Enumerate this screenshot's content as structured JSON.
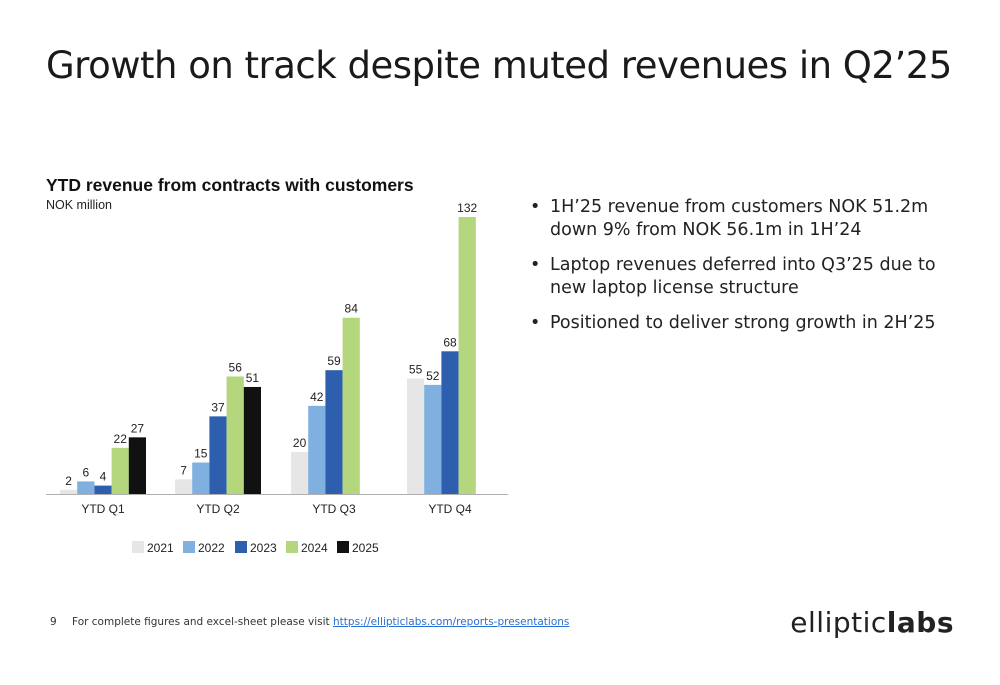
{
  "slide": {
    "title": "Growth on track despite muted revenues in Q2’25"
  },
  "bullets": [
    "1H’25 revenue from customers NOK 51.2m down 9% from NOK 56.1m in 1H’24",
    "Laptop revenues deferred into Q3’25 due to new laptop license structure",
    "Positioned to deliver strong growth in 2H’25"
  ],
  "footer": {
    "page_number": "9",
    "text": "For complete figures and excel-sheet please visit",
    "link": "https://ellipticlabs.com/reports-presentations"
  },
  "logo": {
    "part1": "elliptic",
    "part2": "labs"
  },
  "chart_data": {
    "type": "bar",
    "title": "YTD revenue from contracts with customers",
    "ylabel": "NOK million",
    "xlabel": "",
    "categories": [
      "YTD Q1",
      "YTD Q2",
      "YTD Q3",
      "YTD Q4"
    ],
    "ylim": [
      0,
      132
    ],
    "grid": false,
    "legend_position": "bottom",
    "series": [
      {
        "name": "2021",
        "color": "#e6e6e6",
        "values": [
          2,
          7,
          20,
          55
        ]
      },
      {
        "name": "2022",
        "color": "#7fb0df",
        "values": [
          6,
          15,
          42,
          52
        ]
      },
      {
        "name": "2023",
        "color": "#2e5fae",
        "values": [
          4,
          37,
          59,
          68
        ]
      },
      {
        "name": "2024",
        "color": "#b4d67c",
        "values": [
          22,
          56,
          84,
          132
        ]
      },
      {
        "name": "2025",
        "color": "#111111",
        "values": [
          27,
          51,
          null,
          null
        ]
      }
    ]
  }
}
